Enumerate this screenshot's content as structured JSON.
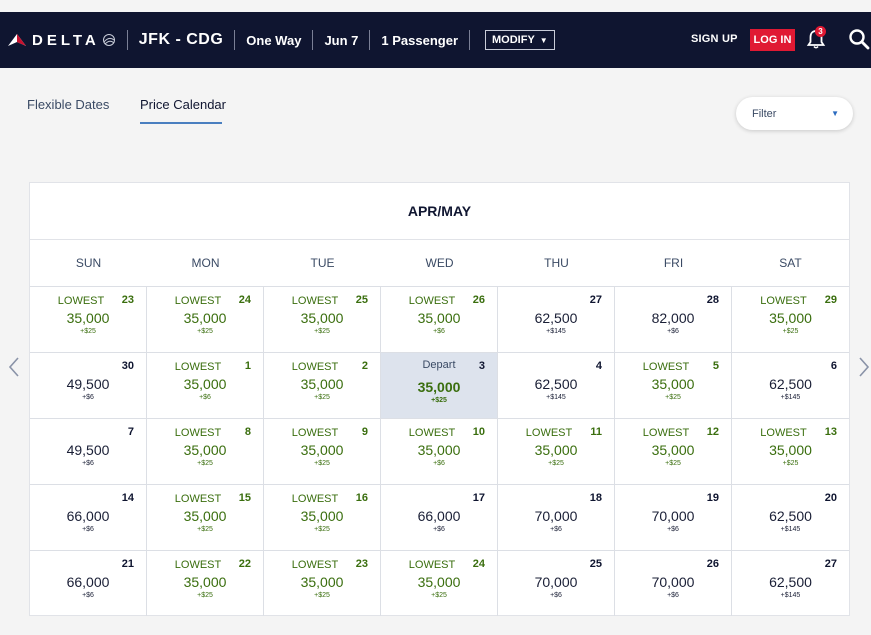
{
  "header": {
    "brand": "DELTA",
    "route": "JFK - CDG",
    "trip_type": "One Way",
    "date": "Jun 7",
    "passengers": "1 Passenger",
    "modify_label": "MODIFY",
    "signup_label": "SIGN UP",
    "login_label": "LOG IN",
    "notification_count": "3"
  },
  "tabs": {
    "flexible_dates": "Flexible Dates",
    "price_calendar": "Price Calendar"
  },
  "filter": {
    "label": "Filter"
  },
  "calendar": {
    "month_label": "APR/MAY",
    "weekdays": [
      "SUN",
      "MON",
      "TUE",
      "WED",
      "THU",
      "FRI",
      "SAT"
    ],
    "weeks": [
      [
        {
          "date": "23",
          "tag": "LOWEST",
          "price": "35,000",
          "fee": "+$25",
          "lowest": true
        },
        {
          "date": "24",
          "tag": "LOWEST",
          "price": "35,000",
          "fee": "+$25",
          "lowest": true
        },
        {
          "date": "25",
          "tag": "LOWEST",
          "price": "35,000",
          "fee": "+$25",
          "lowest": true
        },
        {
          "date": "26",
          "tag": "LOWEST",
          "price": "35,000",
          "fee": "+$6",
          "lowest": true
        },
        {
          "date": "27",
          "tag": "",
          "price": "62,500",
          "fee": "+$145",
          "lowest": false
        },
        {
          "date": "28",
          "tag": "",
          "price": "82,000",
          "fee": "+$6",
          "lowest": false
        },
        {
          "date": "29",
          "tag": "LOWEST",
          "price": "35,000",
          "fee": "+$25",
          "lowest": true
        }
      ],
      [
        {
          "date": "30",
          "tag": "",
          "price": "49,500",
          "fee": "+$6",
          "lowest": false
        },
        {
          "date": "1",
          "tag": "LOWEST",
          "price": "35,000",
          "fee": "+$6",
          "lowest": true
        },
        {
          "date": "2",
          "tag": "LOWEST",
          "price": "35,000",
          "fee": "+$25",
          "lowest": true
        },
        {
          "date": "3",
          "tag": "Depart",
          "price": "35,000",
          "fee": "+$25",
          "lowest": false,
          "selected": true
        },
        {
          "date": "4",
          "tag": "",
          "price": "62,500",
          "fee": "+$145",
          "lowest": false
        },
        {
          "date": "5",
          "tag": "LOWEST",
          "price": "35,000",
          "fee": "+$25",
          "lowest": true
        },
        {
          "date": "6",
          "tag": "",
          "price": "62,500",
          "fee": "+$145",
          "lowest": false
        }
      ],
      [
        {
          "date": "7",
          "tag": "",
          "price": "49,500",
          "fee": "+$6",
          "lowest": false
        },
        {
          "date": "8",
          "tag": "LOWEST",
          "price": "35,000",
          "fee": "+$25",
          "lowest": true
        },
        {
          "date": "9",
          "tag": "LOWEST",
          "price": "35,000",
          "fee": "+$25",
          "lowest": true
        },
        {
          "date": "10",
          "tag": "LOWEST",
          "price": "35,000",
          "fee": "+$6",
          "lowest": true
        },
        {
          "date": "11",
          "tag": "LOWEST",
          "price": "35,000",
          "fee": "+$25",
          "lowest": true
        },
        {
          "date": "12",
          "tag": "LOWEST",
          "price": "35,000",
          "fee": "+$25",
          "lowest": true
        },
        {
          "date": "13",
          "tag": "LOWEST",
          "price": "35,000",
          "fee": "+$25",
          "lowest": true
        }
      ],
      [
        {
          "date": "14",
          "tag": "",
          "price": "66,000",
          "fee": "+$6",
          "lowest": false
        },
        {
          "date": "15",
          "tag": "LOWEST",
          "price": "35,000",
          "fee": "+$25",
          "lowest": true
        },
        {
          "date": "16",
          "tag": "LOWEST",
          "price": "35,000",
          "fee": "+$25",
          "lowest": true
        },
        {
          "date": "17",
          "tag": "",
          "price": "66,000",
          "fee": "+$6",
          "lowest": false
        },
        {
          "date": "18",
          "tag": "",
          "price": "70,000",
          "fee": "+$6",
          "lowest": false
        },
        {
          "date": "19",
          "tag": "",
          "price": "70,000",
          "fee": "+$6",
          "lowest": false
        },
        {
          "date": "20",
          "tag": "",
          "price": "62,500",
          "fee": "+$145",
          "lowest": false
        }
      ],
      [
        {
          "date": "21",
          "tag": "",
          "price": "66,000",
          "fee": "+$6",
          "lowest": false
        },
        {
          "date": "22",
          "tag": "LOWEST",
          "price": "35,000",
          "fee": "+$25",
          "lowest": true
        },
        {
          "date": "23",
          "tag": "LOWEST",
          "price": "35,000",
          "fee": "+$25",
          "lowest": true
        },
        {
          "date": "24",
          "tag": "LOWEST",
          "price": "35,000",
          "fee": "+$25",
          "lowest": true
        },
        {
          "date": "25",
          "tag": "",
          "price": "70,000",
          "fee": "+$6",
          "lowest": false
        },
        {
          "date": "26",
          "tag": "",
          "price": "70,000",
          "fee": "+$6",
          "lowest": false
        },
        {
          "date": "27",
          "tag": "",
          "price": "62,500",
          "fee": "+$145",
          "lowest": false
        }
      ]
    ]
  },
  "colors": {
    "header_bg": "#0f1530",
    "login_red": "#e01933",
    "lowest_green": "#3a6e0e",
    "selected_bg": "#dde3ed",
    "tab_underline": "#4a7fc0"
  },
  "icons": {
    "logo": "delta-widget-icon",
    "bell": "bell-icon",
    "search": "search-icon",
    "prev": "chevron-left-icon",
    "next": "chevron-right-icon",
    "filter_caret": "caret-down-icon"
  }
}
